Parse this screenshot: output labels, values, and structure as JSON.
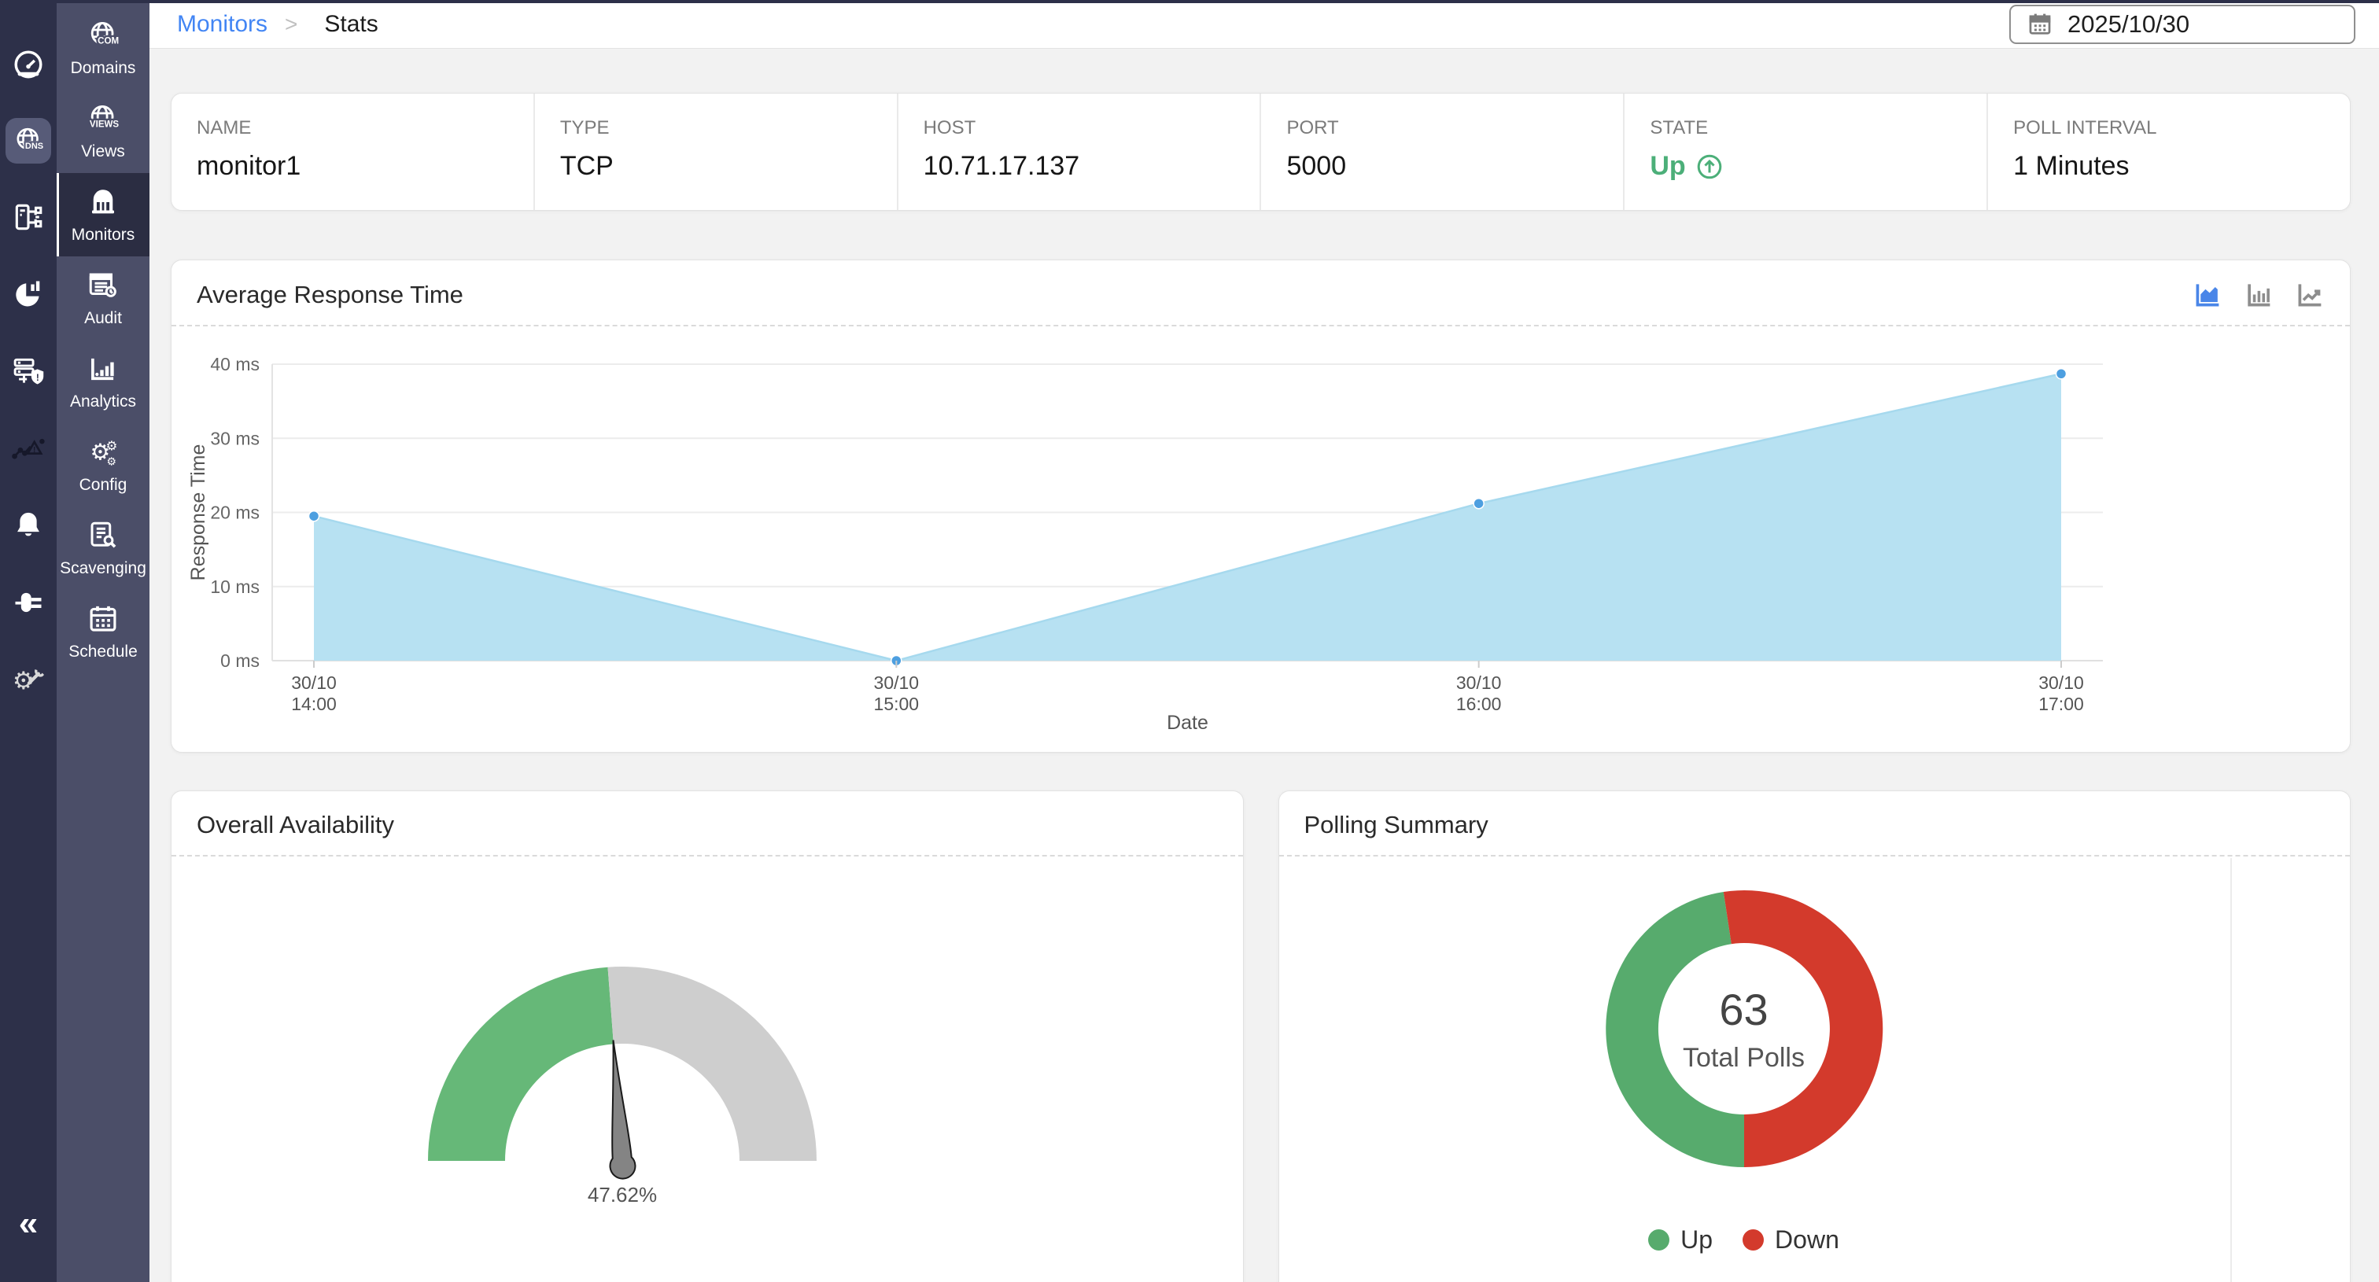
{
  "header": {
    "breadcrumb": [
      {
        "label": "Monitors"
      },
      {
        "label": "Stats"
      }
    ],
    "separator": ">",
    "date_value": "2025/10/30"
  },
  "sidebar": {
    "rail": [
      "speedometer-icon",
      "dns-app-icon",
      "server-tree-icon",
      "pie-chart-icon",
      "server-shield-icon",
      "chart-warning-icon",
      "bell-icon",
      "plug-icon",
      "gear-wrench-icon"
    ],
    "icon_badges": {
      "domains": "COM",
      "views": "VIEWS",
      "dns": "DNS"
    },
    "collapse_glyph": "«",
    "menu": [
      {
        "label": "Domains",
        "icon": "domains-globe-icon",
        "active": false
      },
      {
        "label": "Views",
        "icon": "views-globe-icon",
        "active": false
      },
      {
        "label": "Monitors",
        "icon": "monitors-icon",
        "active": true
      },
      {
        "label": "Audit",
        "icon": "audit-icon",
        "active": false
      },
      {
        "label": "Analytics",
        "icon": "analytics-icon",
        "active": false
      },
      {
        "label": "Config",
        "icon": "config-icon",
        "active": false
      },
      {
        "label": "Scavenging",
        "icon": "scavenging-icon",
        "active": false
      },
      {
        "label": "Schedule",
        "icon": "schedule-icon",
        "active": false
      }
    ]
  },
  "monitor": {
    "fields": [
      {
        "label": "NAME",
        "value": "monitor1"
      },
      {
        "label": "TYPE",
        "value": "TCP"
      },
      {
        "label": "HOST",
        "value": "10.71.17.137"
      },
      {
        "label": "PORT",
        "value": "5000"
      },
      {
        "label": "STATE",
        "value": "Up",
        "state": true,
        "state_color": "#4caf79"
      },
      {
        "label": "POLL INTERVAL",
        "value": "1 Minutes"
      }
    ]
  },
  "chart_data": {
    "response_time": {
      "type": "area",
      "title": "Average Response Time",
      "categories": [
        "30/10\n14:00",
        "30/10\n15:00",
        "30/10\n16:00",
        "30/10\n17:00"
      ],
      "values": [
        19.5,
        0,
        21.2,
        38.7
      ],
      "xlabel": "Date",
      "ylabel": "Response Time",
      "ylim": [
        0,
        40
      ],
      "yticks": [
        {
          "value": 0,
          "label": "0 ms"
        },
        {
          "value": 10,
          "label": "10 ms"
        },
        {
          "value": 20,
          "label": "20 ms"
        },
        {
          "value": 30,
          "label": "30 ms"
        },
        {
          "value": 40,
          "label": "40 ms"
        }
      ],
      "grid": true,
      "area_color": "#b7e1f2",
      "line_color": "#a6d9ee",
      "point_color": "#4d9fe0",
      "toolbar": [
        {
          "icon": "area-chart-icon",
          "active": true
        },
        {
          "icon": "bar-chart-icon",
          "active": false
        },
        {
          "icon": "line-chart-icon",
          "active": false
        }
      ],
      "active_tool_color": "#4a86e8",
      "tool_color": "#8d8d8d"
    },
    "availability": {
      "type": "gauge",
      "title": "Overall Availability",
      "percent": 47.62,
      "label": "47.62%",
      "fill_color": "#66b878",
      "track_color": "#cecece",
      "needle_color": "#848484"
    },
    "polling": {
      "type": "donut",
      "title": "Polling Summary",
      "center_value": "63",
      "center_label": "Total Polls",
      "segments": [
        {
          "label": "Up",
          "value": 30,
          "color": "#57ab6d"
        },
        {
          "label": "Down",
          "value": 33,
          "color": "#d33a2c"
        }
      ],
      "legend_position": "bottom"
    }
  }
}
